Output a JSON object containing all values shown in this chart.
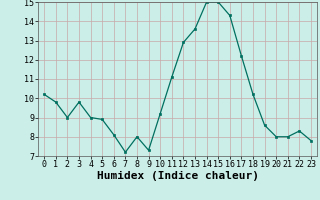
{
  "x": [
    0,
    1,
    2,
    3,
    4,
    5,
    6,
    7,
    8,
    9,
    10,
    11,
    12,
    13,
    14,
    15,
    16,
    17,
    18,
    19,
    20,
    21,
    22,
    23
  ],
  "y": [
    10.2,
    9.8,
    9.0,
    9.8,
    9.0,
    8.9,
    8.1,
    7.2,
    8.0,
    7.3,
    9.2,
    11.1,
    12.9,
    13.6,
    15.0,
    15.0,
    14.3,
    12.2,
    10.2,
    8.6,
    8.0,
    8.0,
    8.3,
    7.8
  ],
  "xlabel": "Humidex (Indice chaleur)",
  "ylim": [
    7,
    15
  ],
  "xlim_min": -0.5,
  "xlim_max": 23.5,
  "yticks": [
    7,
    8,
    9,
    10,
    11,
    12,
    13,
    14,
    15
  ],
  "xticks": [
    0,
    1,
    2,
    3,
    4,
    5,
    6,
    7,
    8,
    9,
    10,
    11,
    12,
    13,
    14,
    15,
    16,
    17,
    18,
    19,
    20,
    21,
    22,
    23
  ],
  "line_color": "#007060",
  "marker_color": "#007060",
  "bg_color": "#cceee8",
  "grid_color": "#c8a8a8",
  "tick_fontsize": 6,
  "label_fontsize": 8
}
